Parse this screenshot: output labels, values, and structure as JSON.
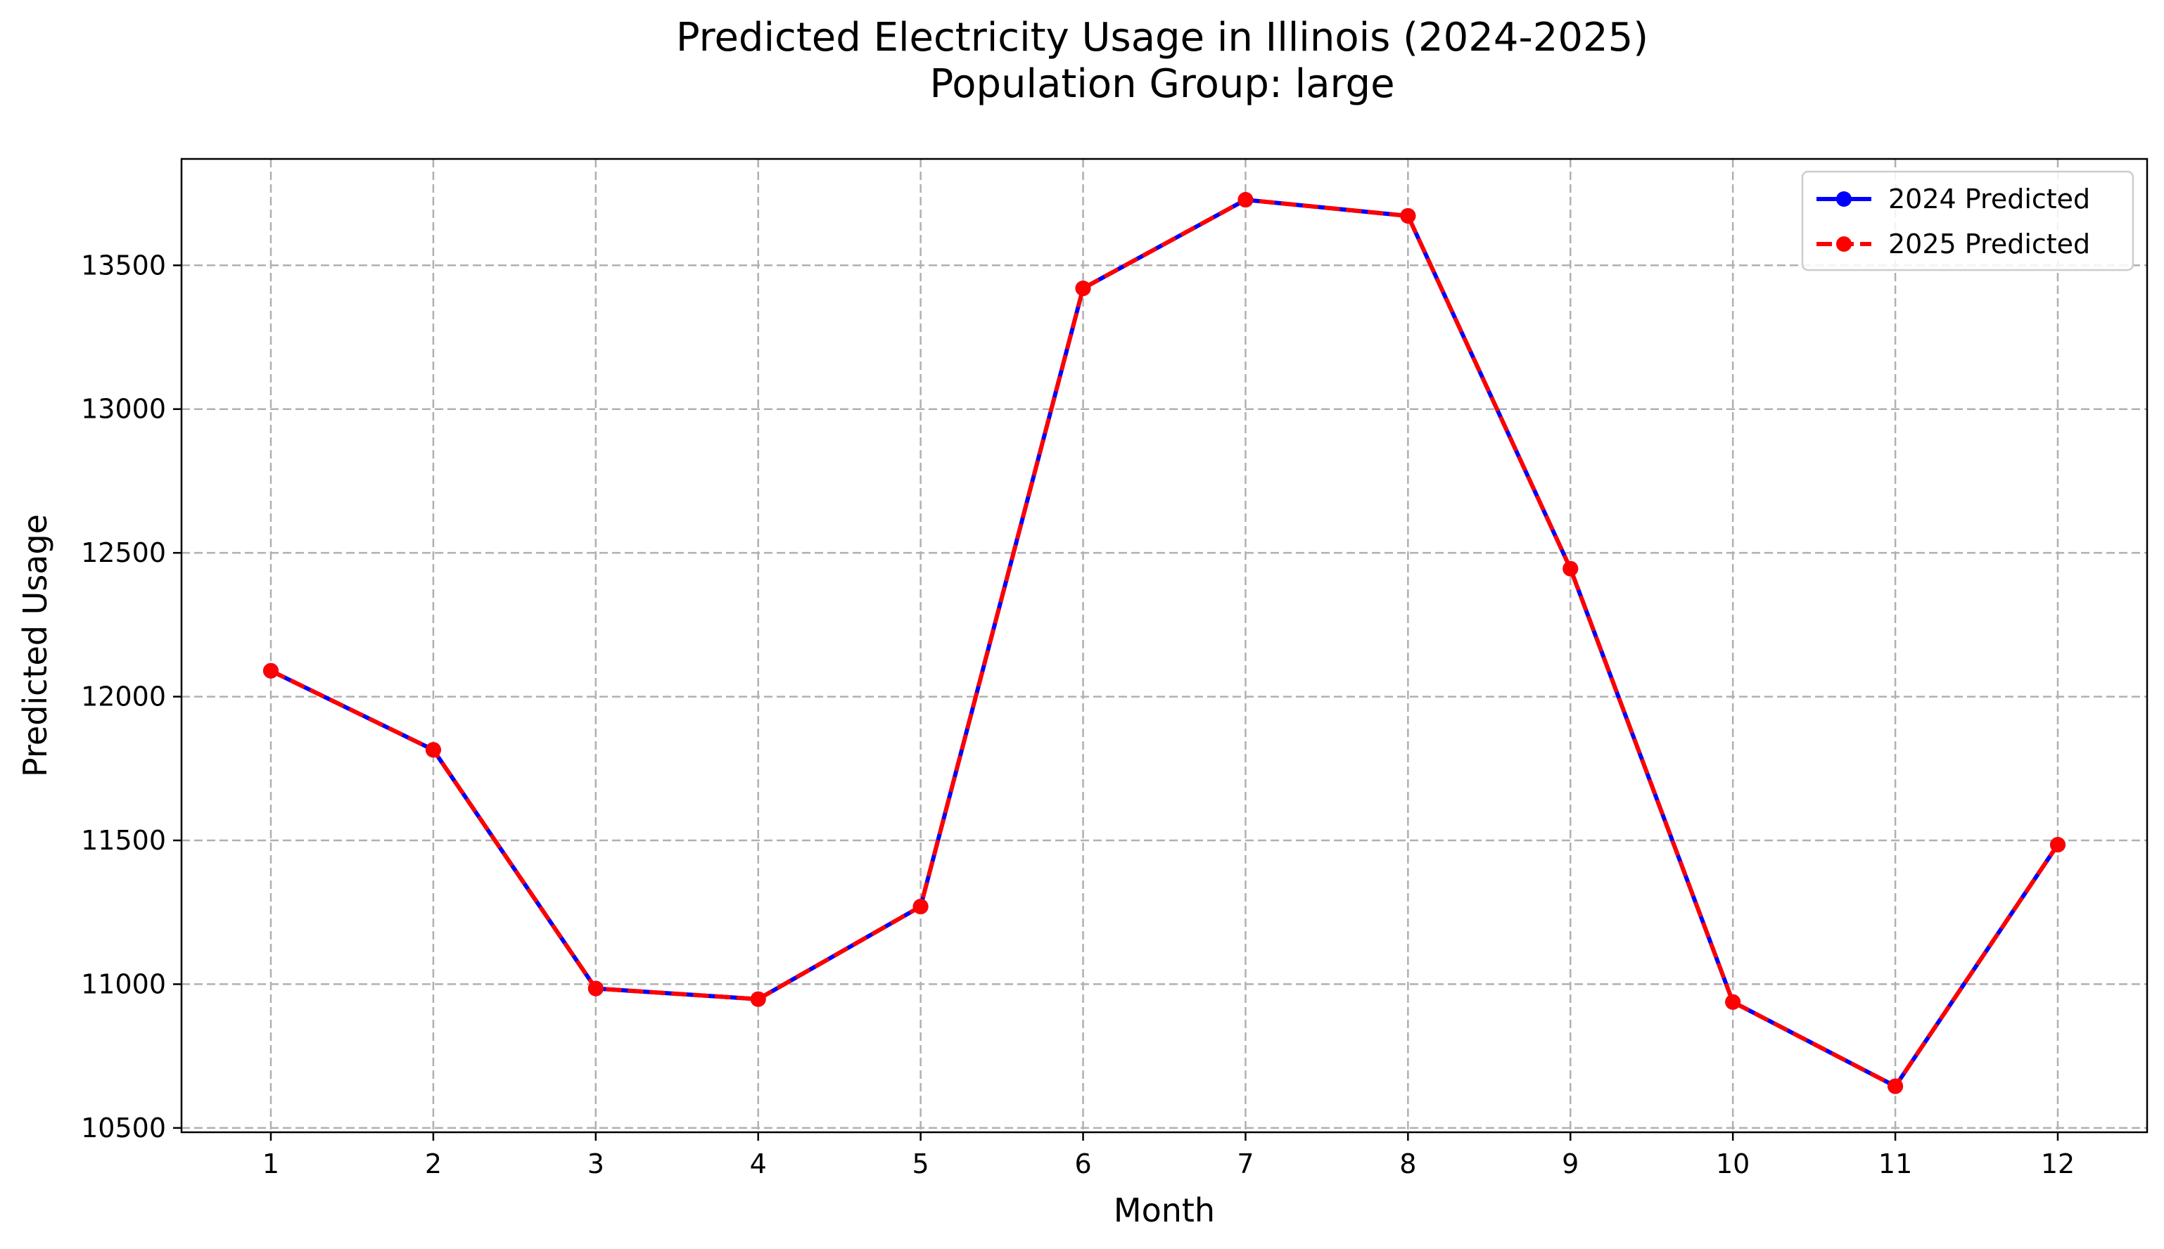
{
  "chart_data": {
    "type": "line",
    "title": "Predicted Electricity Usage in Illinois (2024-2025)",
    "subtitle": "Population Group: large",
    "xlabel": "Month",
    "ylabel": "Predicted Usage",
    "x": [
      1,
      2,
      3,
      4,
      5,
      6,
      7,
      8,
      9,
      10,
      11,
      12
    ],
    "x_tick_labels": [
      "1",
      "2",
      "3",
      "4",
      "5",
      "6",
      "7",
      "8",
      "9",
      "10",
      "11",
      "12"
    ],
    "xlim": [
      0.45,
      12.55
    ],
    "ylim": [
      10485,
      13870
    ],
    "y_ticks": [
      10500,
      11000,
      11500,
      12000,
      12500,
      13000,
      13500
    ],
    "y_tick_labels": [
      "10500",
      "11000",
      "11500",
      "12000",
      "12500",
      "13000",
      "13500"
    ],
    "grid": true,
    "legend_position": "upper right",
    "series": [
      {
        "name": "2024 Predicted",
        "color": "#0000ff",
        "line_style": "solid",
        "marker": "circle",
        "values": [
          12090,
          11815,
          10985,
          10948,
          11270,
          13420,
          13728,
          13672,
          12445,
          10938,
          10645,
          11485
        ]
      },
      {
        "name": "2025 Predicted",
        "color": "#ff0000",
        "line_style": "dashed",
        "marker": "circle",
        "values": [
          12090,
          11815,
          10985,
          10948,
          11270,
          13420,
          13728,
          13672,
          12445,
          10938,
          10645,
          11485
        ]
      }
    ]
  }
}
